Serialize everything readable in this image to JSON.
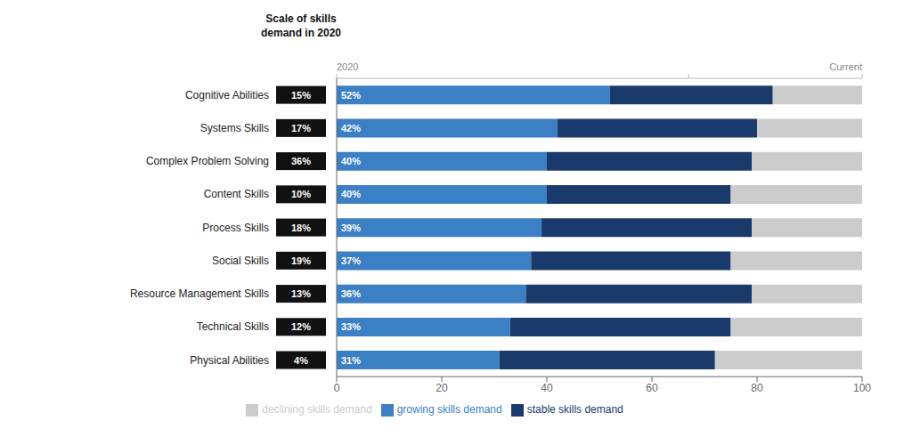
{
  "chart_data": {
    "type": "bar",
    "orientation": "horizontal",
    "stacked": true,
    "data_labels": true,
    "legend": "bottom",
    "categories": [
      "Cognitive Abilities",
      "Systems Skills",
      "Complex Problem Solving",
      "Content Skills",
      "Process Skills",
      "Social Skills",
      "Resource Management Skills",
      "Technical Skills",
      "Physical Abilities"
    ],
    "series": [
      {
        "name": "growing skills demand",
        "color": "#3b7fc4",
        "values": [
          52,
          42,
          40,
          40,
          39,
          37,
          36,
          33,
          31
        ],
        "value_labels": [
          "52%",
          "42%",
          "40%",
          "40%",
          "39%",
          "37%",
          "36%",
          "33%",
          "31%"
        ]
      },
      {
        "name": "stable skills demand",
        "color": "#1a3a6b",
        "values": [
          31,
          38,
          39,
          35,
          40,
          38,
          43,
          42,
          41
        ]
      },
      {
        "name": "declining skills demand",
        "color": "#cccccc",
        "values": [
          17,
          20,
          21,
          25,
          21,
          25,
          21,
          25,
          28
        ]
      }
    ],
    "xlim": [
      0,
      100
    ],
    "xticks": [
      0,
      20,
      40,
      60,
      80,
      100
    ],
    "scale": {
      "title": "Scale of skills\ndemand in 2020",
      "color": "#111111",
      "values": [
        15,
        17,
        36,
        10,
        18,
        19,
        13,
        12,
        4
      ],
      "value_labels": [
        "15%",
        "17%",
        "36%",
        "10%",
        "18%",
        "19%",
        "13%",
        "12%",
        "4%"
      ]
    },
    "indicator": {
      "labels": [
        "2020",
        "Current"
      ],
      "tick": 67
    }
  }
}
